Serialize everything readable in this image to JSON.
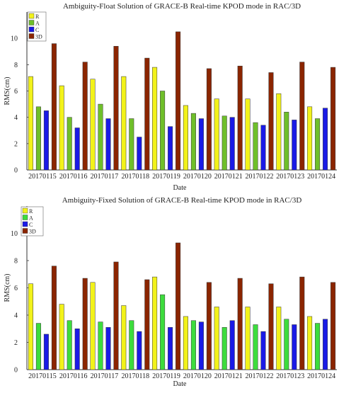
{
  "chart_data": [
    {
      "type": "bar",
      "title": "Ambiguity-Float Solution of GRACE-B Real-time KPOD mode in RAC/3D",
      "xlabel": "Date",
      "ylabel": "RMS(cm)",
      "ylim": [
        0,
        12
      ],
      "yticks": [
        0,
        2,
        4,
        6,
        8,
        10
      ],
      "grid": false,
      "legend_position": "top-left",
      "categories": [
        "20170115",
        "20170116",
        "20170117",
        "20170118",
        "20170119",
        "20170120",
        "20170121",
        "20170122",
        "20170123",
        "20170124"
      ],
      "series": [
        {
          "name": "R",
          "color": "#f2f21a",
          "values": [
            7.1,
            6.4,
            6.9,
            7.1,
            7.8,
            4.9,
            5.4,
            5.4,
            5.8,
            4.8
          ]
        },
        {
          "name": "A",
          "color": "#6fbf2a",
          "values": [
            4.8,
            4.0,
            5.0,
            3.9,
            6.0,
            4.3,
            4.1,
            3.6,
            4.4,
            3.9
          ]
        },
        {
          "name": "C",
          "color": "#1a1ae6",
          "values": [
            4.5,
            3.2,
            3.9,
            2.5,
            3.3,
            3.9,
            4.0,
            3.4,
            3.8,
            4.7
          ]
        },
        {
          "name": "3D",
          "color": "#8b2500",
          "values": [
            9.6,
            8.2,
            9.4,
            8.5,
            10.5,
            7.7,
            7.9,
            7.4,
            8.2,
            7.8
          ]
        }
      ]
    },
    {
      "type": "bar",
      "title": "Ambiguity-Fixed Solution of GRACE-B Real-time KPOD mode in RAC/3D",
      "xlabel": "Date",
      "ylabel": "RMS(cm)",
      "ylim": [
        0,
        12
      ],
      "yticks": [
        0,
        2,
        4,
        6,
        8,
        10
      ],
      "grid": false,
      "legend_position": "top-left",
      "categories": [
        "20170115",
        "20170116",
        "20170117",
        "20170118",
        "20170119",
        "20170120",
        "20170121",
        "20170122",
        "20170123",
        "20170124"
      ],
      "series": [
        {
          "name": "R",
          "color": "#f2f21a",
          "values": [
            6.3,
            4.8,
            6.4,
            4.7,
            6.8,
            3.9,
            4.6,
            4.6,
            4.6,
            3.9
          ]
        },
        {
          "name": "A",
          "color": "#3ddc3d",
          "values": [
            3.4,
            3.6,
            3.5,
            3.6,
            5.5,
            3.6,
            3.1,
            3.3,
            3.7,
            3.4
          ]
        },
        {
          "name": "C",
          "color": "#1a1ae6",
          "values": [
            2.6,
            3.0,
            3.1,
            2.8,
            3.1,
            3.5,
            3.6,
            2.8,
            3.3,
            3.7
          ]
        },
        {
          "name": "3D",
          "color": "#8b2500",
          "values": [
            7.6,
            6.7,
            7.9,
            6.6,
            9.3,
            6.4,
            6.7,
            6.3,
            6.8,
            6.4
          ]
        }
      ]
    }
  ]
}
